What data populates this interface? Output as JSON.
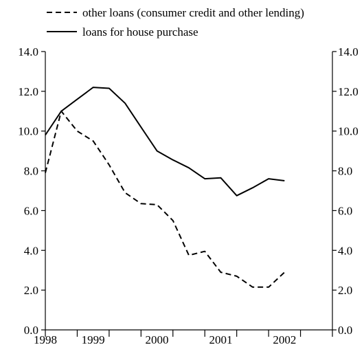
{
  "chart_data": {
    "type": "line",
    "title": "",
    "xlabel": "",
    "ylabel": "",
    "ylim": [
      0,
      14
    ],
    "y_ticks": [
      "0.0",
      "2.0",
      "4.0",
      "6.0",
      "8.0",
      "10.0",
      "12.0",
      "14.0"
    ],
    "x_tick_labels": [
      "1998",
      "1999",
      "2000",
      "2001",
      "2002"
    ],
    "x_period_boundaries": [
      "1998-01",
      "1998-07",
      "1999-01",
      "1999-07",
      "2000-01",
      "2000-07",
      "2001-01",
      "2001-07",
      "2002-01",
      "2002-07"
    ],
    "x_year_label_positions": [
      "1998-01",
      "1998-10",
      "1999-10",
      "2000-10",
      "2001-10"
    ],
    "xlim": [
      "1998-01",
      "2002-07"
    ],
    "grid": false,
    "dual_y_axis": true,
    "legend": {
      "position": "top-left",
      "entries": [
        "other loans (consumer credit and other lending)",
        "loans for house purchase"
      ]
    },
    "series": [
      {
        "name": "other loans (consumer credit and other lending)",
        "style": "dashed",
        "color": "#000000",
        "points": [
          [
            "1998-01",
            7.9
          ],
          [
            "1998-04",
            11.0
          ],
          [
            "1998-07",
            10.0
          ],
          [
            "1998-10",
            9.5
          ],
          [
            "1999-01",
            8.3
          ],
          [
            "1999-04",
            6.9
          ],
          [
            "1999-07",
            6.35
          ],
          [
            "1999-10",
            6.3
          ],
          [
            "2000-01",
            5.5
          ],
          [
            "2000-04",
            3.75
          ],
          [
            "2000-07",
            3.95
          ],
          [
            "2000-10",
            2.9
          ],
          [
            "2001-01",
            2.7
          ],
          [
            "2001-04",
            2.15
          ],
          [
            "2001-07",
            2.15
          ],
          [
            "2001-10",
            2.9
          ]
        ]
      },
      {
        "name": "loans for house purchase",
        "style": "solid",
        "color": "#000000",
        "points": [
          [
            "1998-01",
            9.8
          ],
          [
            "1998-04",
            11.0
          ],
          [
            "1998-07",
            11.6
          ],
          [
            "1998-10",
            12.2
          ],
          [
            "1999-01",
            12.15
          ],
          [
            "1999-04",
            11.4
          ],
          [
            "1999-07",
            10.2
          ],
          [
            "1999-10",
            9.0
          ],
          [
            "2000-01",
            8.55
          ],
          [
            "2000-04",
            8.15
          ],
          [
            "2000-07",
            7.6
          ],
          [
            "2000-10",
            7.65
          ],
          [
            "2001-01",
            6.75
          ],
          [
            "2001-04",
            7.15
          ],
          [
            "2001-07",
            7.6
          ],
          [
            "2001-10",
            7.5
          ]
        ]
      }
    ]
  }
}
